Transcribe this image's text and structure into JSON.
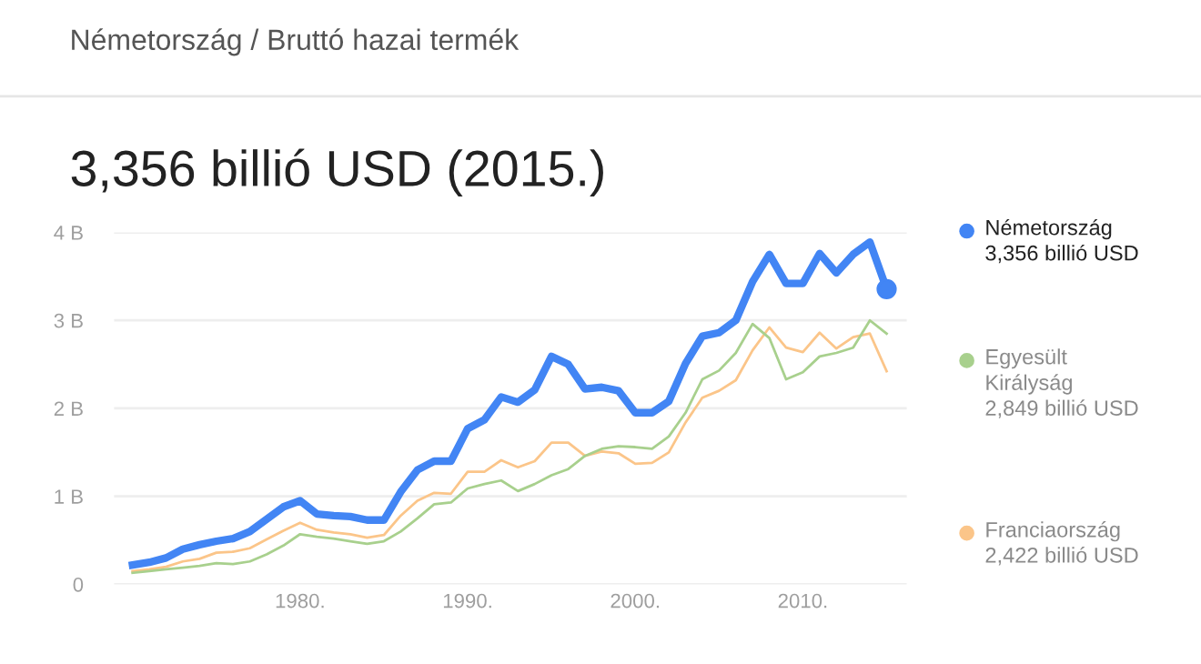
{
  "chart_data": {
    "type": "line",
    "title": "Németország / Bruttó hazai termék",
    "subtitle": "3,356 billió USD (2015.)",
    "x": [
      1970,
      1971,
      1972,
      1973,
      1974,
      1975,
      1976,
      1977,
      1978,
      1979,
      1980,
      1981,
      1982,
      1983,
      1984,
      1985,
      1986,
      1987,
      1988,
      1989,
      1990,
      1991,
      1992,
      1993,
      1994,
      1995,
      1996,
      1997,
      1998,
      1999,
      2000,
      2001,
      2002,
      2003,
      2004,
      2005,
      2006,
      2007,
      2008,
      2009,
      2010,
      2011,
      2012,
      2013,
      2014,
      2015
    ],
    "series": [
      {
        "name": "Németország",
        "color": "#4285f4",
        "values": [
          0.22,
          0.25,
          0.3,
          0.4,
          0.45,
          0.49,
          0.52,
          0.6,
          0.74,
          0.88,
          0.95,
          0.8,
          0.78,
          0.77,
          0.73,
          0.73,
          1.05,
          1.3,
          1.4,
          1.4,
          1.77,
          1.87,
          2.13,
          2.07,
          2.21,
          2.59,
          2.5,
          2.22,
          2.24,
          2.2,
          1.95,
          1.95,
          2.08,
          2.51,
          2.82,
          2.86,
          3.0,
          3.44,
          3.75,
          3.42,
          3.42,
          3.76,
          3.54,
          3.75,
          3.89,
          3.356
        ]
      },
      {
        "name": "Egyesült Királyság",
        "color": "#a8d08d",
        "values": [
          0.13,
          0.15,
          0.17,
          0.19,
          0.21,
          0.24,
          0.23,
          0.26,
          0.34,
          0.44,
          0.57,
          0.54,
          0.52,
          0.49,
          0.46,
          0.49,
          0.6,
          0.75,
          0.91,
          0.93,
          1.09,
          1.14,
          1.18,
          1.06,
          1.14,
          1.24,
          1.31,
          1.46,
          1.54,
          1.57,
          1.56,
          1.54,
          1.68,
          1.95,
          2.33,
          2.43,
          2.63,
          2.96,
          2.8,
          2.33,
          2.41,
          2.59,
          2.63,
          2.69,
          3.0,
          2.849
        ]
      },
      {
        "name": "Franciaország",
        "color": "#fbc589",
        "values": [
          0.15,
          0.17,
          0.2,
          0.26,
          0.29,
          0.36,
          0.37,
          0.41,
          0.51,
          0.61,
          0.7,
          0.62,
          0.59,
          0.57,
          0.53,
          0.56,
          0.78,
          0.95,
          1.04,
          1.03,
          1.28,
          1.28,
          1.41,
          1.33,
          1.4,
          1.61,
          1.61,
          1.46,
          1.51,
          1.49,
          1.37,
          1.38,
          1.5,
          1.84,
          2.12,
          2.2,
          2.32,
          2.66,
          2.92,
          2.69,
          2.64,
          2.86,
          2.68,
          2.81,
          2.85,
          2.422
        ]
      }
    ],
    "annotations": [
      "3,356 billió USD",
      "2,849 billió USD",
      "2,422 billió USD"
    ],
    "xlim": [
      1968.9,
      2016.2
    ],
    "xticks": [
      {
        "value": 1980,
        "label": "1980."
      },
      {
        "value": 1990,
        "label": "1990."
      },
      {
        "value": 2000,
        "label": "2000."
      },
      {
        "value": 2010,
        "label": "2010."
      }
    ],
    "ylim": [
      0,
      4
    ],
    "yticks": [
      0,
      {
        "value": 1,
        "label": "1 B"
      },
      {
        "value": 2,
        "label": "2 B"
      },
      {
        "value": 3,
        "label": "3 B"
      },
      {
        "value": 4,
        "label": "4 B"
      }
    ],
    "grid": "y",
    "legend": "right"
  }
}
